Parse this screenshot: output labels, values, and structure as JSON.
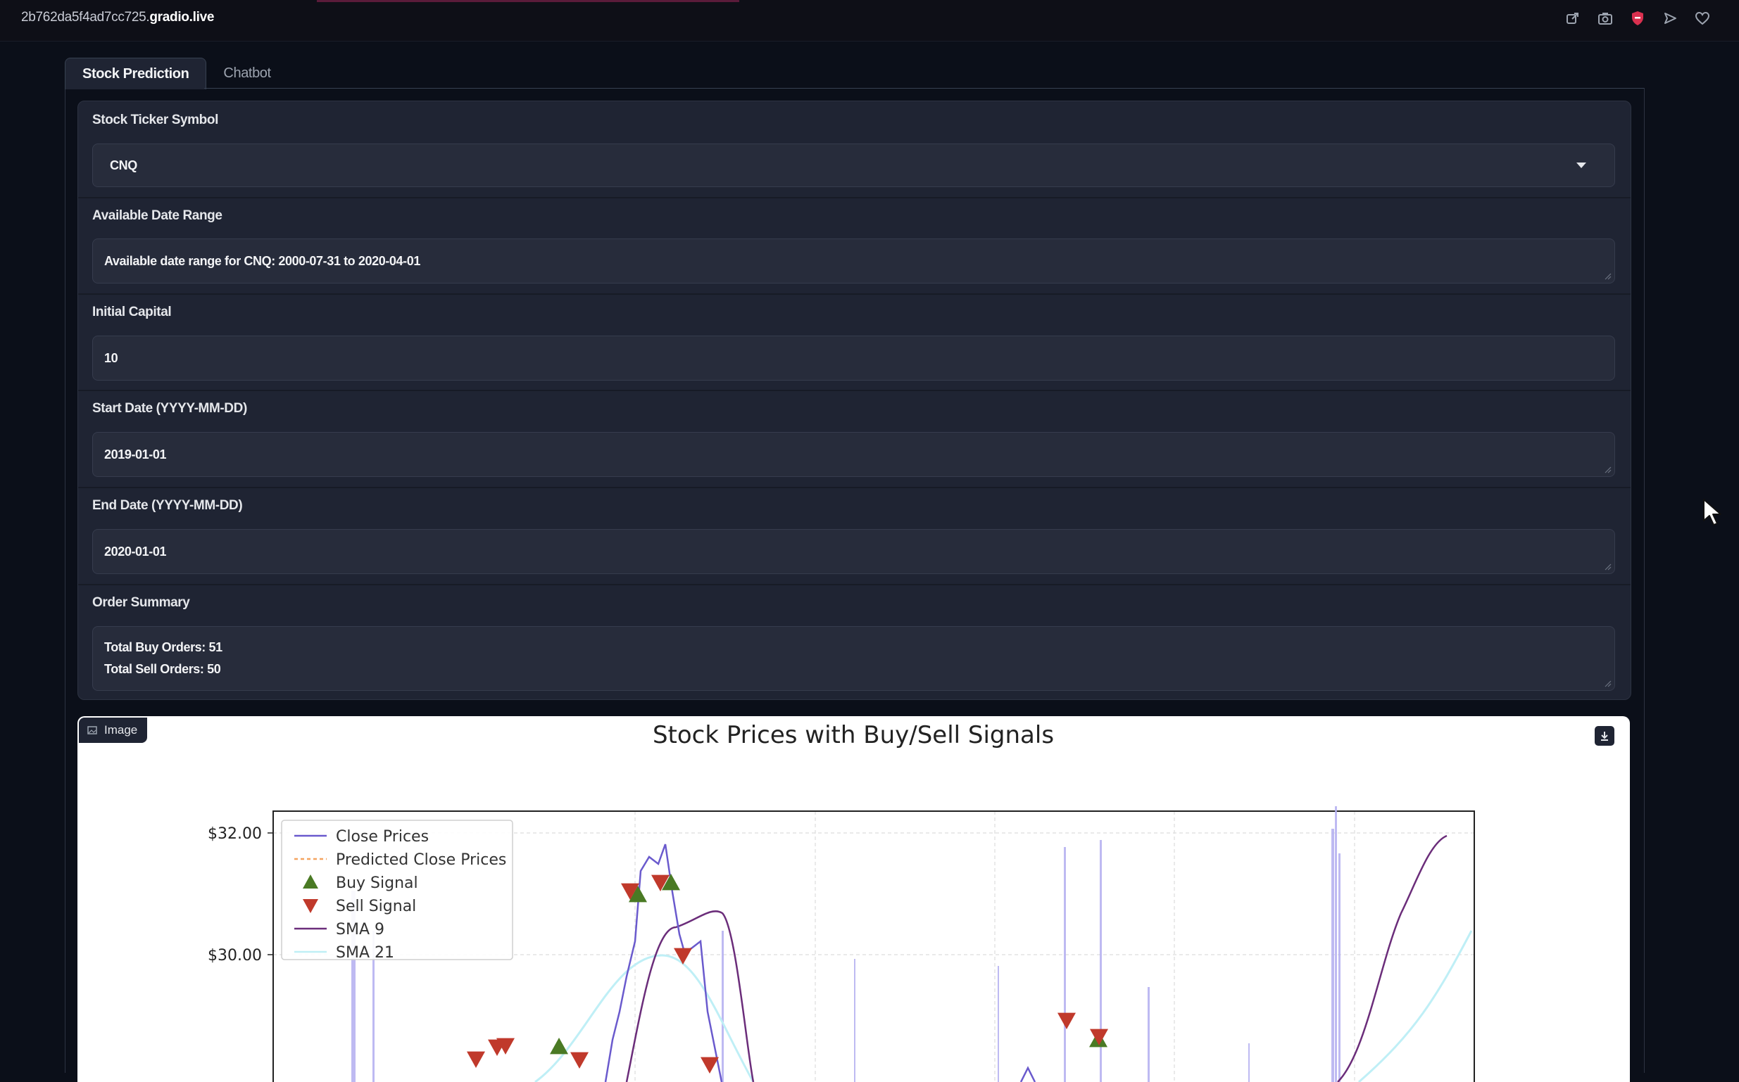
{
  "browser": {
    "url_prefix": "2b762da5f4ad7cc725.",
    "url_domain": "gradio.live",
    "toolbar_icons": [
      "share-icon",
      "camera-icon",
      "shield-icon",
      "send-icon",
      "heart-icon"
    ]
  },
  "tabs": [
    {
      "label": "Stock Prediction",
      "active": true
    },
    {
      "label": "Chatbot",
      "active": false
    }
  ],
  "form": {
    "ticker": {
      "label": "Stock Ticker Symbol",
      "value": "CNQ"
    },
    "date_range": {
      "label": "Available Date Range",
      "value": "Available date range for CNQ: 2000-07-31 to 2020-04-01"
    },
    "capital": {
      "label": "Initial Capital",
      "value": "10"
    },
    "start_date": {
      "label": "Start Date (YYYY-MM-DD)",
      "value": "2019-01-01"
    },
    "end_date": {
      "label": "End Date (YYYY-MM-DD)",
      "value": "2020-01-01"
    },
    "order_summary": {
      "label": "Order Summary",
      "line1": "Total Buy Orders: 51",
      "line2": "Total Sell Orders: 50"
    }
  },
  "image_panel": {
    "badge_label": "Image"
  },
  "chart_data": {
    "type": "line",
    "title": "Stock Prices with Buy/Sell Signals",
    "y_tick_labels": [
      "$32.00",
      "$30.00"
    ],
    "legend": [
      "Close Prices",
      "Predicted Close Prices",
      "Buy Signal",
      "Sell Signal",
      "SMA 9",
      "SMA 21"
    ],
    "legend_position": "top-left",
    "grid": true,
    "colors": {
      "close": "#6a5acd",
      "predicted": "#f4a460",
      "buy": "#4a7a24",
      "sell": "#c0392b",
      "sma9": "#6b2d7a",
      "sma21": "#bfeff6",
      "volume": "#b3aef0"
    }
  }
}
